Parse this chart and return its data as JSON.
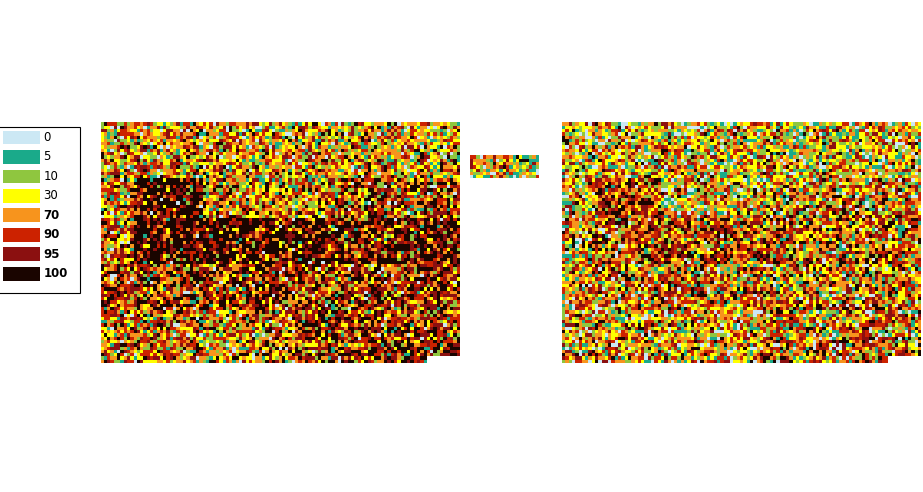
{
  "legend_labels": [
    "0",
    "5",
    "10",
    "30",
    "70",
    "90",
    "95",
    "100"
  ],
  "legend_colors": [
    "#cce8f4",
    "#1aaa8a",
    "#8fc63f",
    "#ffff00",
    "#f7941d",
    "#cc2200",
    "#8b1010",
    "#1a0500"
  ],
  "background_color": "#b8dff0",
  "land_color": "#ffffff",
  "border_color": "#333333",
  "figsize": [
    9.23,
    4.92
  ],
  "dpi": 100,
  "extent_lon": [
    -25,
    45
  ],
  "extent_lat": [
    34,
    72
  ],
  "grid_res": 0.5,
  "legend_fontsize": 8.5
}
